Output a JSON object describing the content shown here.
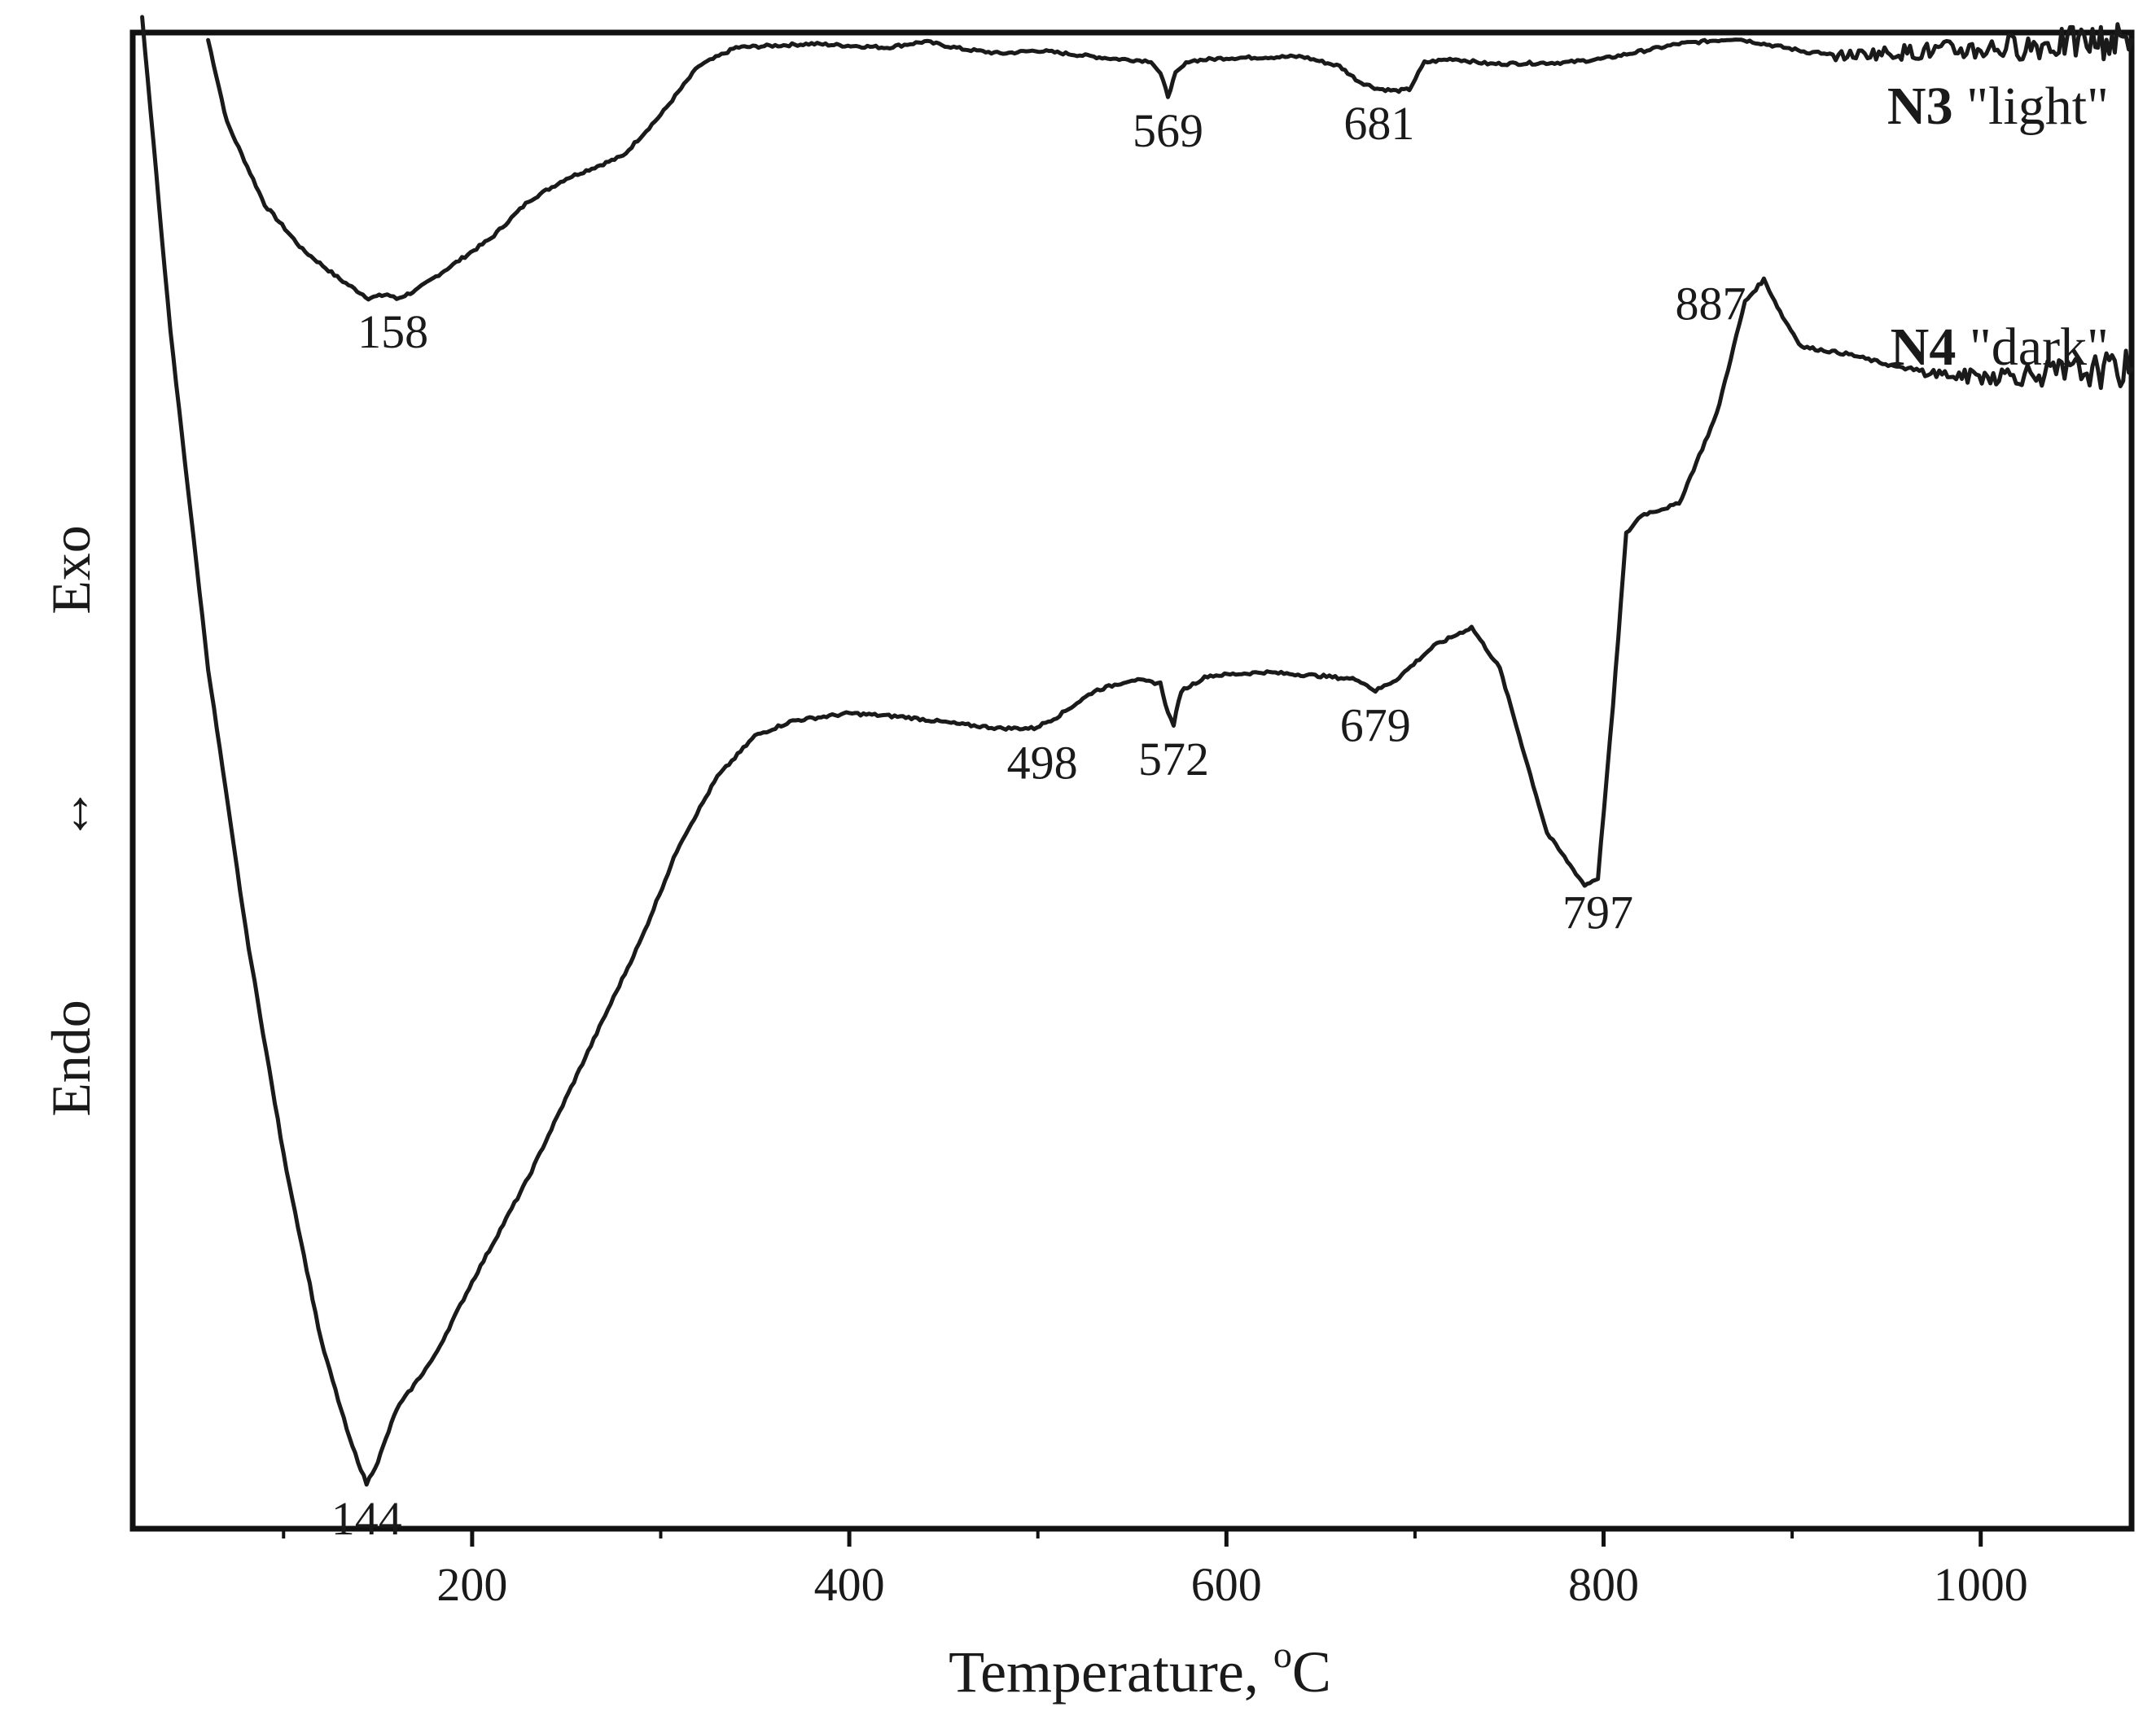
{
  "chart_data": {
    "type": "line",
    "title": "",
    "xlabel": "Temperature, ",
    "xlabel_superscript": "o",
    "xlabel_unit": "C",
    "ylabel_top": "Exo",
    "ylabel_arrow": "↔",
    "ylabel_bottom": "Endo",
    "xlim": [
      20,
      1080
    ],
    "ylim": [
      -1.0,
      1.0
    ],
    "x_ticks": [
      200,
      400,
      600,
      800,
      1000
    ],
    "x_tick_labels": [
      "200",
      "400",
      "600",
      "800",
      "1000"
    ],
    "x_minor_ticks": [
      100,
      300,
      500,
      700,
      900
    ],
    "grid": false,
    "series": [
      {
        "name": "N3 \"light\"",
        "legend_bold": "N3",
        "legend_rest": " \"light\"",
        "noise_start": 910,
        "points": [
          [
            60,
            0.99
          ],
          [
            70,
            0.88
          ],
          [
            90,
            0.77
          ],
          [
            110,
            0.71
          ],
          [
            130,
            0.67
          ],
          [
            145,
            0.645
          ],
          [
            155,
            0.65
          ],
          [
            160,
            0.644
          ],
          [
            170,
            0.655
          ],
          [
            190,
            0.69
          ],
          [
            210,
            0.725
          ],
          [
            230,
            0.775
          ],
          [
            250,
            0.805
          ],
          [
            280,
            0.835
          ],
          [
            300,
            0.89
          ],
          [
            320,
            0.955
          ],
          [
            340,
            0.98
          ],
          [
            380,
            0.985
          ],
          [
            420,
            0.98
          ],
          [
            440,
            0.988
          ],
          [
            460,
            0.978
          ],
          [
            480,
            0.972
          ],
          [
            500,
            0.976
          ],
          [
            540,
            0.965
          ],
          [
            560,
            0.962
          ],
          [
            565,
            0.945
          ],
          [
            569,
            0.915
          ],
          [
            573,
            0.945
          ],
          [
            580,
            0.962
          ],
          [
            600,
            0.966
          ],
          [
            640,
            0.968
          ],
          [
            660,
            0.955
          ],
          [
            670,
            0.935
          ],
          [
            680,
            0.925
          ],
          [
            690,
            0.922
          ],
          [
            697,
            0.924
          ],
          [
            705,
            0.96
          ],
          [
            720,
            0.965
          ],
          [
            740,
            0.958
          ],
          [
            780,
            0.96
          ],
          [
            800,
            0.965
          ],
          [
            820,
            0.975
          ],
          [
            840,
            0.985
          ],
          [
            870,
            0.992
          ],
          [
            900,
            0.978
          ],
          [
            920,
            0.968
          ],
          [
            940,
            0.972
          ],
          [
            970,
            0.975
          ],
          [
            1000,
            0.978
          ],
          [
            1040,
            0.985
          ],
          [
            1080,
            0.99
          ]
        ]
      },
      {
        "name": "N4 \"dark\"",
        "legend_bold": "N4",
        "legend_rest": " \"dark\"",
        "noise_start": 960,
        "points": [
          [
            25,
            1.02
          ],
          [
            40,
            0.6
          ],
          [
            60,
            0.15
          ],
          [
            80,
            -0.2
          ],
          [
            100,
            -0.5
          ],
          [
            120,
            -0.75
          ],
          [
            135,
            -0.88
          ],
          [
            144,
            -0.94
          ],
          [
            150,
            -0.91
          ],
          [
            160,
            -0.84
          ],
          [
            180,
            -0.77
          ],
          [
            200,
            -0.67
          ],
          [
            230,
            -0.53
          ],
          [
            260,
            -0.37
          ],
          [
            290,
            -0.21
          ],
          [
            310,
            -0.085
          ],
          [
            330,
            0.005
          ],
          [
            350,
            0.06
          ],
          [
            370,
            0.08
          ],
          [
            400,
            0.09
          ],
          [
            430,
            0.085
          ],
          [
            460,
            0.075
          ],
          [
            480,
            0.07
          ],
          [
            498,
            0.07
          ],
          [
            510,
            0.085
          ],
          [
            530,
            0.12
          ],
          [
            550,
            0.135
          ],
          [
            565,
            0.13
          ],
          [
            569,
            0.09
          ],
          [
            572,
            0.075
          ],
          [
            576,
            0.12
          ],
          [
            590,
            0.14
          ],
          [
            620,
            0.145
          ],
          [
            650,
            0.14
          ],
          [
            670,
            0.135
          ],
          [
            679,
            0.12
          ],
          [
            690,
            0.135
          ],
          [
            710,
            0.18
          ],
          [
            730,
            0.205
          ],
          [
            745,
            0.15
          ],
          [
            770,
            -0.07
          ],
          [
            790,
            -0.14
          ],
          [
            797,
            -0.13
          ],
          [
            805,
            0.1
          ],
          [
            812,
            0.33
          ],
          [
            820,
            0.355
          ],
          [
            840,
            0.37
          ],
          [
            860,
            0.49
          ],
          [
            875,
            0.64
          ],
          [
            885,
            0.67
          ],
          [
            895,
            0.62
          ],
          [
            905,
            0.58
          ],
          [
            930,
            0.57
          ],
          [
            960,
            0.55
          ],
          [
            990,
            0.54
          ],
          [
            1040,
            0.545
          ],
          [
            1080,
            0.55
          ]
        ]
      }
    ],
    "annotations": [
      {
        "text": "158",
        "series": "N3 \"light\"",
        "x": 158
      },
      {
        "text": "569",
        "series": "N3 \"light\"",
        "x": 569
      },
      {
        "text": "681",
        "series": "N3 \"light\"",
        "x": 681
      },
      {
        "text": "887",
        "series": "N4 \"dark\"",
        "x": 887
      },
      {
        "text": "144",
        "series": "N4 \"dark\"",
        "x": 144
      },
      {
        "text": "498",
        "series": "N4 \"dark\"",
        "x": 498
      },
      {
        "text": "572",
        "series": "N4 \"dark\"",
        "x": 572
      },
      {
        "text": "679",
        "series": "N4 \"dark\"",
        "x": 679
      },
      {
        "text": "797",
        "series": "N4 \"dark\"",
        "x": 797
      }
    ]
  }
}
